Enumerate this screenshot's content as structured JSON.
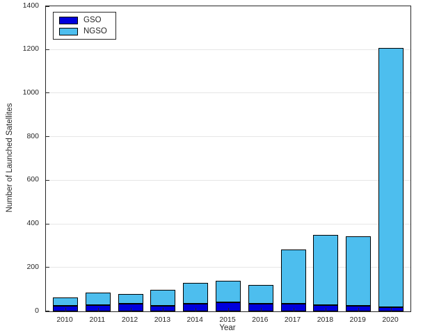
{
  "chart_data": {
    "type": "bar",
    "stacked": true,
    "title": "",
    "xlabel": "Year",
    "ylabel": "Number of Launched Satellites",
    "categories": [
      "2010",
      "2011",
      "2012",
      "2013",
      "2014",
      "2015",
      "2016",
      "2017",
      "2018",
      "2019",
      "2020"
    ],
    "series": [
      {
        "name": "GSO",
        "color": "#0000dc",
        "values": [
          25,
          30,
          35,
          25,
          35,
          40,
          35,
          35,
          30,
          25,
          20
        ]
      },
      {
        "name": "NGSO",
        "color": "#4dbeee",
        "values": [
          40,
          55,
          45,
          75,
          95,
          100,
          85,
          248,
          320,
          320,
          1190
        ]
      }
    ],
    "edge_color": "#000000",
    "grid_color": "#e6e6e6",
    "ylim": [
      0,
      1400
    ],
    "yticks": [
      0,
      200,
      400,
      600,
      800,
      1000,
      1200,
      1400
    ],
    "grid": true,
    "legend_position": "top-left"
  }
}
